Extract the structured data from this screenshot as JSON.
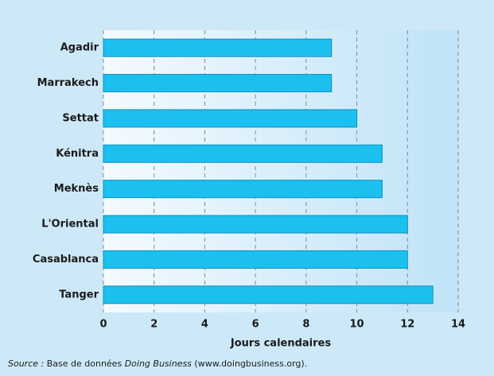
{
  "chart_data": {
    "type": "bar",
    "orientation": "horizontal",
    "categories": [
      "Agadir",
      "Marrakech",
      "Settat",
      "Kénitra",
      "Meknès",
      "L'Oriental",
      "Casablanca",
      "Tanger"
    ],
    "values": [
      9,
      9,
      10,
      11,
      11,
      12,
      12,
      13
    ],
    "color": "#1cc0ef",
    "xlim": [
      0,
      14
    ],
    "xticks": [
      0,
      2,
      4,
      6,
      8,
      10,
      12,
      14
    ],
    "xlabel": "Jours calendaires",
    "grid": true,
    "source": [
      "Source :",
      " Base de données ",
      "Doing Business",
      " (www.doingbusiness.org)."
    ]
  }
}
